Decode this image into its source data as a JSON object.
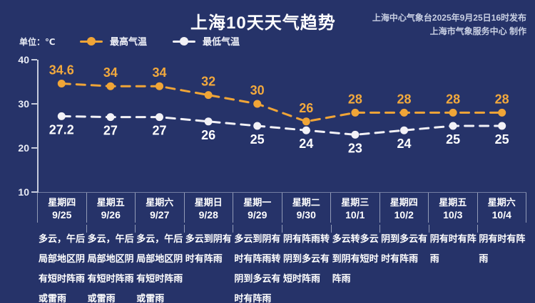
{
  "header": {
    "title": "上海10天天气趋势",
    "publisher_line1": "上海中心气象台2025年9月25日16时发布",
    "publisher_line2": "上海市气象服务中心 制作"
  },
  "unit_label": "单位：℃",
  "legend": {
    "max_label": "最高气温",
    "min_label": "最低气温"
  },
  "colors": {
    "background": "#263369",
    "max_series": "#F0A537",
    "max_value_label": "#F2A93D",
    "min_series": "#F2F1F6",
    "divider": "#A6AEC6"
  },
  "chart_data": {
    "type": "line",
    "title": "上海10天天气趋势",
    "unit": "℃",
    "ylim": [
      10,
      40
    ],
    "y_ticks": [
      40,
      30,
      20,
      10
    ],
    "grid": false,
    "legend_position": "top",
    "line_style": "dashed",
    "categories": [
      "星期四 9/25",
      "星期五 9/26",
      "星期六 9/27",
      "星期日 9/28",
      "星期一 9/29",
      "星期二 9/30",
      "星期三 10/1",
      "星期四 10/2",
      "星期五 10/3",
      "星期六 10/4"
    ],
    "series": [
      {
        "name": "最高气温",
        "color": "#F0A537",
        "values": [
          34.6,
          34,
          34,
          32,
          30,
          26,
          28,
          28,
          28,
          28
        ]
      },
      {
        "name": "最低气温",
        "color": "#F2F1F6",
        "values": [
          27.2,
          27,
          27,
          26,
          25,
          24,
          23,
          24,
          25,
          25
        ]
      }
    ],
    "days": [
      {
        "weekday": "星期四",
        "date": "9/25",
        "weather": "多云，午后\n局部地区阴\n有短时阵雨\n或雷雨"
      },
      {
        "weekday": "星期五",
        "date": "9/26",
        "weather": "多云，午后\n局部地区阴\n有短时阵雨\n或雷雨"
      },
      {
        "weekday": "星期六",
        "date": "9/27",
        "weather": "多云，午后\n局部地区阴\n有短时阵雨\n或雷雨"
      },
      {
        "weekday": "星期日",
        "date": "9/28",
        "weather": "多云到阴有\n时有阵雨"
      },
      {
        "weekday": "星期一",
        "date": "9/29",
        "weather": "多云到阴有\n时有阵雨转\n阴到多云有\n时有阵雨"
      },
      {
        "weekday": "星期二",
        "date": "9/30",
        "weather": "阴有阵雨转\n阴到多云有\n短时阵雨"
      },
      {
        "weekday": "星期三",
        "date": "10/1",
        "weather": "多云转多云\n到阴有短时\n阵雨"
      },
      {
        "weekday": "星期四",
        "date": "10/2",
        "weather": "阴到多云有\n时有阵雨"
      },
      {
        "weekday": "星期五",
        "date": "10/3",
        "weather": "阴有时有阵\n雨"
      },
      {
        "weekday": "星期六",
        "date": "10/4",
        "weather": "阴有时有阵\n雨"
      }
    ]
  }
}
